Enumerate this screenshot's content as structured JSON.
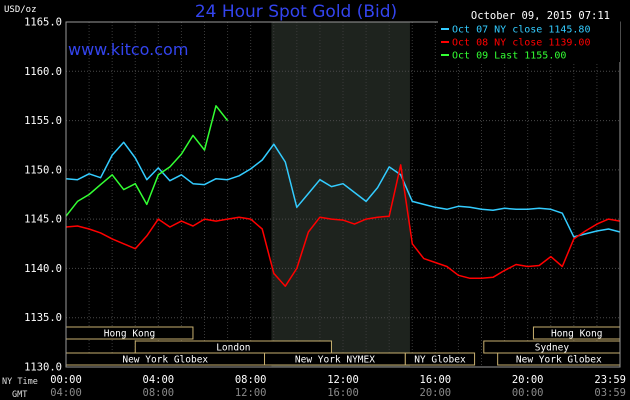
{
  "chart_data": {
    "type": "line",
    "title": "24 Hour Spot Gold (Bid)",
    "watermark": "www.kitco.com",
    "ylabel": "USD/oz",
    "date": "October 09, 2015 07:11",
    "ylim": [
      1130,
      1165
    ],
    "y_ticks": [
      "1130.0",
      "1135.0",
      "1140.0",
      "1145.0",
      "1150.0",
      "1155.0",
      "1160.0",
      "1165.0"
    ],
    "y_tick_values": [
      1130,
      1135,
      1140,
      1145,
      1150,
      1155,
      1160,
      1165
    ],
    "xlim": [
      0,
      24
    ],
    "x_ticks_ny": [
      "00:00",
      "04:00",
      "08:00",
      "12:00",
      "16:00",
      "20:00",
      "23:59"
    ],
    "x_ticks_gmt": [
      "04:00",
      "08:00",
      "12:00",
      "16:00",
      "20:00",
      "00:00",
      "03:59"
    ],
    "x_tick_hours": [
      0,
      4,
      8,
      12,
      16,
      20,
      23.98
    ],
    "x_axis_row_labels": [
      "NY Time",
      "GMT"
    ],
    "grid": true,
    "shaded_hours": [
      8.9,
      14.9
    ],
    "legend_placement": "top-right",
    "series": [
      {
        "name": "Oct 07 NY close 1145.80",
        "color": "#33ccff",
        "x": [
          0,
          0.5,
          1,
          1.5,
          2,
          2.5,
          3,
          3.5,
          4,
          4.5,
          5,
          5.5,
          6,
          6.5,
          7,
          7.5,
          8,
          8.5,
          9,
          9.5,
          10,
          10.5,
          11,
          11.5,
          12,
          12.5,
          13,
          13.5,
          14,
          14.5,
          15,
          15.5,
          16,
          16.5,
          17,
          17.5,
          18,
          18.5,
          19,
          19.5,
          20,
          20.5,
          21,
          21.5,
          22,
          22.5,
          23,
          23.5,
          24
        ],
        "y": [
          1149.1,
          1149.0,
          1149.6,
          1149.2,
          1151.5,
          1152.8,
          1151.2,
          1149.0,
          1150.2,
          1148.9,
          1149.5,
          1148.6,
          1148.5,
          1149.1,
          1149.0,
          1149.4,
          1150.1,
          1151.0,
          1152.6,
          1150.8,
          1146.2,
          1147.6,
          1149.0,
          1148.3,
          1148.6,
          1147.7,
          1146.8,
          1148.2,
          1150.3,
          1149.5,
          1146.8,
          1146.5,
          1146.2,
          1146.0,
          1146.3,
          1146.2,
          1146.0,
          1145.9,
          1146.1,
          1146.0,
          1146.0,
          1146.1,
          1146.0,
          1145.6,
          1143.2,
          1143.5,
          1143.8,
          1144.0,
          1143.7
        ]
      },
      {
        "name": "Oct 08 NY close 1139.00",
        "color": "#ff0000",
        "x": [
          0,
          0.5,
          1,
          1.5,
          2,
          2.5,
          3,
          3.5,
          4,
          4.5,
          5,
          5.5,
          6,
          6.5,
          7,
          7.5,
          8,
          8.5,
          9,
          9.5,
          10,
          10.5,
          11,
          11.5,
          12,
          12.5,
          13,
          13.5,
          14,
          14.5,
          15,
          15.5,
          16,
          16.5,
          17,
          17.5,
          18,
          18.5,
          19,
          19.5,
          20,
          20.5,
          21,
          21.5,
          22,
          22.5,
          23,
          23.5,
          24
        ],
        "y": [
          1144.2,
          1144.3,
          1144.0,
          1143.6,
          1143.0,
          1142.5,
          1142.0,
          1143.3,
          1145.0,
          1144.2,
          1144.8,
          1144.3,
          1145.0,
          1144.8,
          1145.0,
          1145.2,
          1145.0,
          1144.0,
          1139.5,
          1138.2,
          1140.0,
          1143.7,
          1145.2,
          1145.0,
          1144.9,
          1144.5,
          1145.0,
          1145.2,
          1145.3,
          1150.5,
          1142.5,
          1141.0,
          1140.6,
          1140.2,
          1139.3,
          1139.0,
          1139.0,
          1139.1,
          1139.8,
          1140.4,
          1140.2,
          1140.3,
          1141.2,
          1140.2,
          1143.0,
          1143.8,
          1144.5,
          1145.0,
          1144.8
        ]
      },
      {
        "name": "Oct 09 Last 1155.00",
        "color": "#33ff33",
        "x": [
          0,
          0.5,
          1,
          1.5,
          2,
          2.5,
          3,
          3.5,
          4,
          4.5,
          5,
          5.5,
          6,
          6.5,
          7
        ],
        "y": [
          1145.3,
          1146.8,
          1147.5,
          1148.5,
          1149.5,
          1148.0,
          1148.6,
          1146.5,
          1149.5,
          1150.3,
          1151.6,
          1153.5,
          1152.0,
          1156.5,
          1155.0
        ]
      }
    ],
    "sessions": [
      {
        "label": "Hong Kong",
        "start": 0,
        "end": 5.5,
        "row": 0
      },
      {
        "label": "Hong Kong",
        "start": 20.25,
        "end": 24,
        "row": 0
      },
      {
        "label": "London",
        "start": 3,
        "end": 11.5,
        "row": 1
      },
      {
        "label": "Sydney",
        "start": 18.1,
        "end": 24,
        "row": 1
      },
      {
        "label": "New York Globex",
        "start": 0,
        "end": 8.6,
        "row": 2
      },
      {
        "label": "New York NYMEX",
        "start": 8.6,
        "end": 14.7,
        "row": 2
      },
      {
        "label": "NY Globex",
        "start": 14.7,
        "end": 17.7,
        "row": 2
      },
      {
        "label": "New York Globex",
        "start": 18.7,
        "end": 24,
        "row": 2
      }
    ]
  }
}
